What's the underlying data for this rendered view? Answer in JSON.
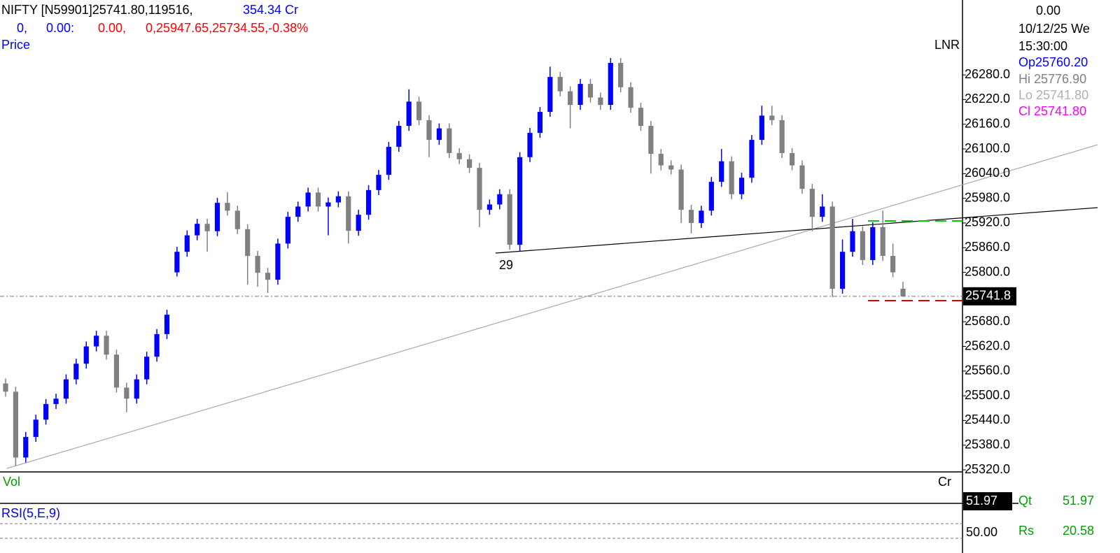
{
  "header": {
    "line1": [
      "NIFTY [N59901]25741.80,119516,",
      "354.34 Cr"
    ],
    "line2": [
      "0,",
      "0.00:",
      "0.00,",
      "0,25947.65,25734.55,-0.38%"
    ]
  },
  "panel_labels": {
    "price": "Price",
    "scale": "LNR",
    "vol": "Vol",
    "vol_unit": "Cr",
    "rsi": "RSI(5,E,9)"
  },
  "info": {
    "value": "0.00",
    "date": "10/12/25 We",
    "time": "15:30:00",
    "open": "Op25760.20",
    "high": "Hi 25776.90",
    "low": "Lo 25741.80",
    "close": "Cl 25741.80"
  },
  "indicators": {
    "vol_tag": "51.97",
    "qt_label": "Qt",
    "qt_value": "51.97",
    "rs_label": "Rs",
    "rs_value": "20.58",
    "rsi_tick": "50.00"
  },
  "chart_data": {
    "type": "candlestick",
    "annotation": "29",
    "up_color": "#0000ff",
    "down_color": "#808080",
    "ylim": [
      25315,
      26462
    ],
    "yticks": [
      {
        "value": 26280,
        "label": "26280.0"
      },
      {
        "value": 26220,
        "label": "26220.0"
      },
      {
        "value": 26160,
        "label": "26160.0"
      },
      {
        "value": 26100,
        "label": "26100.0"
      },
      {
        "value": 26040,
        "label": "26040.0"
      },
      {
        "value": 25980,
        "label": "25980.0"
      },
      {
        "value": 25920,
        "label": "25920.0"
      },
      {
        "value": 25860,
        "label": "25860.0"
      },
      {
        "value": 25800,
        "label": "25800.0"
      },
      {
        "value": 25680,
        "label": "25680.0"
      },
      {
        "value": 25620,
        "label": "25620.0"
      },
      {
        "value": 25560,
        "label": "25560.0"
      },
      {
        "value": 25500,
        "label": "25500.0"
      },
      {
        "value": 25440,
        "label": "25440.0"
      },
      {
        "value": 25380,
        "label": "25380.0"
      },
      {
        "value": 25320,
        "label": "25320.0"
      }
    ],
    "last_price": {
      "value": 25741.8,
      "label": "25741.8"
    },
    "open": [
      25530,
      25510,
      25350,
      25400,
      25442,
      25480,
      25493,
      25540,
      25578,
      25620,
      25646,
      25600,
      25520,
      25493,
      25540,
      25595,
      25650,
      25800,
      25850,
      25890,
      25918,
      25900,
      25969,
      25950,
      25905,
      25840,
      25799,
      25782,
      25870,
      25935,
      25960,
      25994,
      25960,
      25970,
      25985,
      25901,
      25940,
      26000,
      26037,
      26105,
      26156,
      26215,
      26170,
      26122,
      26150,
      26090,
      26075,
      26054,
      25952,
      25965,
      25990,
      25867,
      26080,
      26139,
      26190,
      26275,
      26240,
      26207,
      26258,
      26225,
      26207,
      26309,
      26250,
      26200,
      26156,
      26088,
      26060,
      26050,
      25952,
      25920,
      25950,
      26020,
      26070,
      25990,
      26030,
      26122,
      26181,
      26170,
      26090,
      26060,
      26003,
      25935,
      25960,
      25760,
      25850,
      25900,
      25830,
      25910,
      25840,
      25760.2
    ],
    "high": [
      25542,
      25522,
      25412,
      25454,
      25492,
      25505,
      25552,
      25590,
      25632,
      25658,
      25658,
      25612,
      25532,
      25552,
      25607,
      25662,
      25709,
      25862,
      25902,
      25930,
      25930,
      25981,
      25995,
      25962,
      25917,
      25852,
      25811,
      25882,
      25947,
      25972,
      26006,
      26006,
      25982,
      25997,
      25997,
      25952,
      26012,
      26049,
      26117,
      26168,
      26245,
      26227,
      26182,
      26162,
      26162,
      26102,
      26087,
      26066,
      25977,
      26002,
      26002,
      26092,
      26151,
      26202,
      26300,
      26287,
      26252,
      26270,
      26270,
      26237,
      26321,
      26321,
      26262,
      26212,
      26168,
      26100,
      26072,
      26062,
      25964,
      25962,
      26032,
      26100,
      26082,
      26042,
      26134,
      26205,
      26205,
      26182,
      26102,
      26072,
      26015,
      25990,
      25972,
      25880,
      25930,
      25912,
      25922,
      25950,
      25870,
      25776.9
    ],
    "low": [
      25498,
      25330,
      25338,
      25388,
      25430,
      25468,
      25481,
      25528,
      25566,
      25608,
      25588,
      25508,
      25460,
      25481,
      25528,
      25583,
      25638,
      25790,
      25838,
      25878,
      25850,
      25888,
      25938,
      25893,
      25770,
      25765,
      25750,
      25770,
      25858,
      25923,
      25948,
      25948,
      25890,
      25958,
      25870,
      25889,
      25928,
      25988,
      26025,
      26093,
      26144,
      26158,
      26080,
      26110,
      26078,
      26063,
      26042,
      25910,
      25940,
      25953,
      25855,
      25850,
      26068,
      26127,
      26178,
      26228,
      26150,
      26195,
      26213,
      26195,
      26195,
      26238,
      26188,
      26144,
      26040,
      26048,
      26038,
      25920,
      25895,
      25908,
      25938,
      26008,
      25978,
      25978,
      26018,
      26110,
      26158,
      26078,
      26048,
      25991,
      25900,
      25923,
      25740,
      25748,
      25838,
      25818,
      25818,
      25828,
      25788,
      25741.8
    ],
    "close": [
      25510,
      25350,
      25400,
      25442,
      25480,
      25493,
      25540,
      25578,
      25620,
      25646,
      25600,
      25520,
      25493,
      25540,
      25595,
      25650,
      25697,
      25850,
      25890,
      25918,
      25900,
      25969,
      25950,
      25905,
      25840,
      25799,
      25782,
      25870,
      25935,
      25960,
      25994,
      25960,
      25970,
      25985,
      25901,
      25940,
      26000,
      26037,
      26105,
      26156,
      26215,
      26170,
      26122,
      26150,
      26090,
      26075,
      26054,
      25952,
      25965,
      25990,
      25867,
      26080,
      26139,
      26190,
      26275,
      26240,
      26207,
      26258,
      26225,
      26207,
      26309,
      26250,
      26200,
      26156,
      26088,
      26060,
      26050,
      25952,
      25920,
      25950,
      26020,
      26070,
      25990,
      26030,
      26122,
      26181,
      26170,
      26090,
      26060,
      26003,
      25935,
      25960,
      25760,
      25850,
      25900,
      25830,
      25910,
      25840,
      25800,
      25741.8
    ]
  }
}
